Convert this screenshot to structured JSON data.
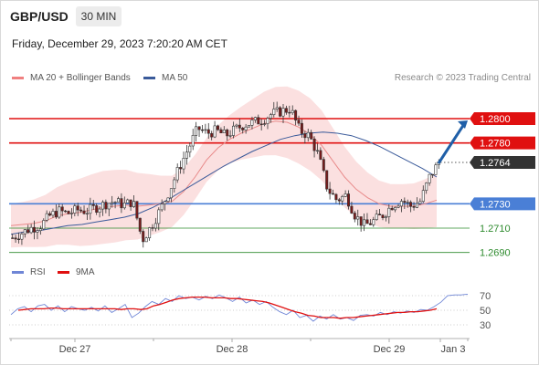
{
  "header": {
    "symbol": "GBP/USD",
    "timeframe": "30 MIN",
    "datetime": "Friday, December 29, 2023 7:20:20 AM CET"
  },
  "legend": {
    "items": [
      {
        "label": "MA 20 + Bollinger Bands",
        "color": "#f08080"
      },
      {
        "label": "MA 50",
        "color": "#3a5a9a"
      }
    ],
    "credit": "Research © 2023 Trading Central"
  },
  "rsi_legend": {
    "items": [
      {
        "label": "RSI",
        "color": "#6f86d6"
      },
      {
        "label": "9MA",
        "color": "#e01010"
      }
    ]
  },
  "colors": {
    "resistance": "#e01010",
    "pivot": "#4a7fd6",
    "support": "#2e8b2e",
    "price_tag": "#333333",
    "up_candle": "#ffffff",
    "down_candle": "#7a1a1a",
    "bands": "#f7c6c6",
    "ma20": "#e88a8a",
    "ma50": "#3a5a9a",
    "arrow": "#1f5fa8"
  },
  "chart_data": [
    {
      "type": "candlestick",
      "title": "GBP/USD",
      "timeframe": "30 MIN",
      "ylim": [
        1.268,
        1.2815
      ],
      "x_ticks": [
        "Dec 27",
        "Dec 28",
        "Dec 29",
        "Jan 3"
      ],
      "levels": [
        {
          "value": 1.28,
          "label": "1.2800",
          "kind": "resistance"
        },
        {
          "value": 1.278,
          "label": "1.2780",
          "kind": "resistance"
        },
        {
          "value": 1.2764,
          "label": "1.2764",
          "kind": "current"
        },
        {
          "value": 1.273,
          "label": "1.2730",
          "kind": "pivot"
        },
        {
          "value": 1.271,
          "label": "1.2710",
          "kind": "support"
        },
        {
          "value": 1.269,
          "label": "1.2690",
          "kind": "support"
        }
      ],
      "close_path": [
        1.2702,
        1.2706,
        1.271,
        1.2712,
        1.272,
        1.2724,
        1.2722,
        1.2725,
        1.2724,
        1.2727,
        1.273,
        1.2732,
        1.2729,
        1.2732,
        1.27,
        1.2712,
        1.2726,
        1.2742,
        1.276,
        1.2776,
        1.2792,
        1.2788,
        1.279,
        1.2786,
        1.2791,
        1.2795,
        1.2797,
        1.2799,
        1.2804,
        1.2806,
        1.2808,
        1.279,
        1.2786,
        1.277,
        1.2742,
        1.2733,
        1.2737,
        1.272,
        1.2712,
        1.2716,
        1.2721,
        1.2729,
        1.2733,
        1.2728,
        1.2732,
        1.2752,
        1.2764
      ],
      "ma20": [
        1.2712,
        1.2713,
        1.2714,
        1.2716,
        1.272,
        1.2722,
        1.2723,
        1.2725,
        1.2727,
        1.2728,
        1.2729,
        1.2728,
        1.2729,
        1.273,
        1.2732,
        1.274,
        1.2752,
        1.2766,
        1.2776,
        1.2783,
        1.2788,
        1.2792,
        1.2796,
        1.2798,
        1.2797,
        1.2793,
        1.2787,
        1.2778,
        1.2765,
        1.2752,
        1.2742,
        1.2735,
        1.273,
        1.2728,
        1.2728,
        1.2728,
        1.273,
        1.2733
      ],
      "ma50": [
        1.2705,
        1.2707,
        1.2708,
        1.271,
        1.2712,
        1.2713,
        1.2715,
        1.2717,
        1.2719,
        1.2722,
        1.2727,
        1.2733,
        1.274,
        1.2747,
        1.2754,
        1.2761,
        1.2767,
        1.2773,
        1.2778,
        1.2783,
        1.2786,
        1.2788,
        1.2789,
        1.2788,
        1.2786,
        1.2782,
        1.2777,
        1.2771,
        1.2765,
        1.2759,
        1.2752
      ],
      "projection": {
        "from": 1.2764,
        "to": 1.28
      }
    },
    {
      "type": "line",
      "title": "RSI",
      "ylim": [
        20,
        80
      ],
      "y_ticks": [
        70,
        50,
        30
      ],
      "series": [
        {
          "name": "RSI",
          "values": [
            44,
            52,
            55,
            48,
            56,
            58,
            50,
            56,
            48,
            55,
            52,
            50,
            54,
            49,
            56,
            47,
            52,
            58,
            40,
            46,
            55,
            62,
            58,
            66,
            62,
            70,
            66,
            68,
            64,
            69,
            66,
            71,
            67,
            62,
            68,
            60,
            64,
            58,
            62,
            54,
            48,
            44,
            50,
            40,
            43,
            35,
            42,
            38,
            44,
            38,
            40,
            36,
            43,
            44,
            42,
            47,
            44,
            48,
            46,
            49,
            47,
            51,
            50,
            55,
            61,
            70,
            71,
            71,
            72
          ]
        },
        {
          "name": "9MA",
          "values": [
            50,
            51,
            52,
            52,
            52,
            53,
            53,
            52,
            52,
            52,
            52,
            52,
            52,
            52,
            52,
            52,
            51,
            52,
            52,
            51,
            52,
            56,
            58,
            61,
            64,
            66,
            67,
            68,
            68,
            68,
            67,
            67,
            67,
            66,
            66,
            65,
            64,
            63,
            62,
            60,
            57,
            54,
            51,
            48,
            46,
            43,
            42,
            40,
            40,
            40,
            39,
            40,
            40,
            41,
            42,
            43,
            44,
            45,
            46,
            47,
            47,
            48,
            48,
            49,
            50,
            52
          ]
        }
      ]
    }
  ]
}
